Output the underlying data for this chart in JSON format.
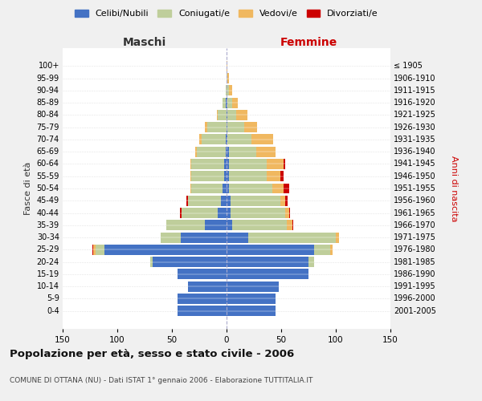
{
  "age_groups": [
    "0-4",
    "5-9",
    "10-14",
    "15-19",
    "20-24",
    "25-29",
    "30-34",
    "35-39",
    "40-44",
    "45-49",
    "50-54",
    "55-59",
    "60-64",
    "65-69",
    "70-74",
    "75-79",
    "80-84",
    "85-89",
    "90-94",
    "95-99",
    "100+"
  ],
  "birth_years": [
    "2001-2005",
    "1996-2000",
    "1991-1995",
    "1986-1990",
    "1981-1985",
    "1976-1980",
    "1971-1975",
    "1966-1970",
    "1961-1965",
    "1956-1960",
    "1951-1955",
    "1946-1950",
    "1941-1945",
    "1936-1940",
    "1931-1935",
    "1926-1930",
    "1921-1925",
    "1916-1920",
    "1911-1915",
    "1906-1910",
    "≤ 1905"
  ],
  "maschi": {
    "celibe": [
      45,
      45,
      35,
      45,
      68,
      112,
      42,
      20,
      8,
      5,
      4,
      2,
      2,
      1,
      1,
      0,
      0,
      1,
      0,
      0,
      0
    ],
    "coniugato": [
      0,
      0,
      0,
      0,
      2,
      8,
      18,
      35,
      33,
      30,
      28,
      30,
      30,
      26,
      22,
      18,
      8,
      3,
      1,
      0,
      0
    ],
    "vedovo": [
      0,
      0,
      0,
      0,
      0,
      2,
      0,
      0,
      0,
      0,
      1,
      1,
      1,
      2,
      2,
      2,
      1,
      0,
      0,
      0,
      0
    ],
    "divorziato": [
      0,
      0,
      0,
      0,
      0,
      1,
      0,
      0,
      2,
      2,
      0,
      0,
      0,
      0,
      0,
      0,
      0,
      0,
      0,
      0,
      0
    ]
  },
  "femmine": {
    "nubile": [
      45,
      45,
      48,
      75,
      75,
      80,
      20,
      5,
      4,
      4,
      2,
      2,
      2,
      2,
      1,
      1,
      1,
      1,
      0,
      0,
      0
    ],
    "coniugata": [
      0,
      0,
      0,
      0,
      5,
      15,
      80,
      50,
      50,
      45,
      40,
      35,
      35,
      25,
      22,
      15,
      8,
      4,
      2,
      1,
      0
    ],
    "vedova": [
      0,
      0,
      0,
      0,
      0,
      2,
      3,
      5,
      3,
      5,
      10,
      12,
      15,
      18,
      20,
      12,
      10,
      5,
      3,
      1,
      1
    ],
    "divorziata": [
      0,
      0,
      0,
      0,
      0,
      0,
      0,
      1,
      1,
      2,
      5,
      3,
      2,
      0,
      0,
      0,
      0,
      0,
      0,
      0,
      0
    ]
  },
  "colors": {
    "celibe": "#4472C4",
    "coniugato": "#BFCE9B",
    "vedovo": "#F0B860",
    "divorziato": "#CC0000"
  },
  "xlim": 150,
  "title": "Popolazione per età, sesso e stato civile - 2006",
  "subtitle": "COMUNE DI OTTANA (NU) - Dati ISTAT 1° gennaio 2006 - Elaborazione TUTTITALIA.IT",
  "ylabel_left": "Fasce di età",
  "ylabel_right": "Anni di nascita",
  "xlabel_maschi": "Maschi",
  "xlabel_femmine": "Femmine",
  "legend_labels": [
    "Celibi/Nubili",
    "Coniugati/e",
    "Vedovi/e",
    "Divorziati/e"
  ],
  "bg_color": "#f0f0f0",
  "plot_bg_color": "#ffffff",
  "maschi_label_color": "#333333",
  "femmine_label_color": "#cc0000",
  "right_ylabel_color": "#cc0000"
}
